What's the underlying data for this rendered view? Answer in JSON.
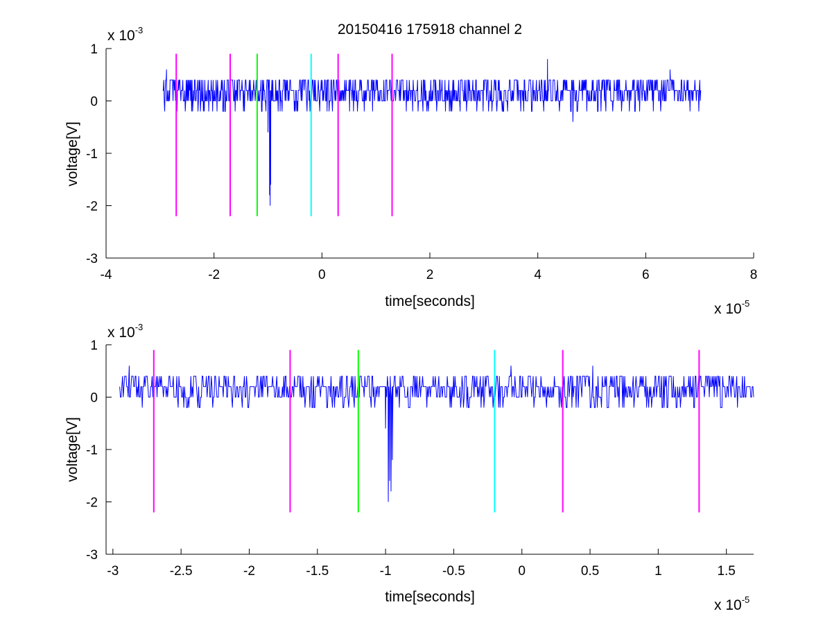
{
  "chart_data": [
    {
      "type": "line",
      "title": "20150416 175918 channel 2",
      "xlabel": "time[seconds]",
      "ylabel": "voltage[V]",
      "x_scale_label": "x 10",
      "x_scale_exponent": "-5",
      "y_scale_label": "x 10",
      "y_scale_exponent": "-3",
      "xlim": [
        -4,
        8
      ],
      "ylim": [
        -3,
        1
      ],
      "x_ticks": [
        -4,
        -2,
        0,
        2,
        4,
        6,
        8
      ],
      "x_tick_labels": [
        "-4",
        "-2",
        "0",
        "2",
        "4",
        "6",
        "8"
      ],
      "y_ticks": [
        -3,
        -2,
        -1,
        0,
        1
      ],
      "y_tick_labels": [
        "-3",
        "-2",
        "-1",
        "0",
        "1"
      ],
      "grid": false,
      "series": [
        {
          "color": "#0000ff",
          "x_range": [
            -2.95,
            7.02
          ],
          "baseline": 0.05,
          "noise_levels": [
            -0.2,
            0,
            0.2,
            0.4
          ],
          "events": [
            {
              "x": -2.88,
              "y": 0.6
            },
            {
              "x": -2.7,
              "y": -0.2
            },
            {
              "x": -1.0,
              "y": -0.6
            },
            {
              "x": -0.97,
              "y": -1.8
            },
            {
              "x": -0.96,
              "y": -2.0
            },
            {
              "x": -0.95,
              "y": -1.6
            },
            {
              "x": 4.18,
              "y": 0.8
            },
            {
              "x": 4.65,
              "y": -0.4
            },
            {
              "x": 6.45,
              "y": 0.6
            }
          ]
        }
      ],
      "markers": [
        {
          "x": -2.7,
          "color": "#ff00ff",
          "y_range": [
            -2.2,
            0.9
          ]
        },
        {
          "x": -1.7,
          "color": "#ff00ff",
          "y_range": [
            -2.2,
            0.9
          ]
        },
        {
          "x": -1.2,
          "color": "#00ff00",
          "y_range": [
            -2.2,
            0.9
          ]
        },
        {
          "x": -0.2,
          "color": "#00ffff",
          "y_range": [
            -2.2,
            0.9
          ]
        },
        {
          "x": 0.3,
          "color": "#ff00ff",
          "y_range": [
            -2.2,
            0.9
          ]
        },
        {
          "x": 1.3,
          "color": "#ff00ff",
          "y_range": [
            -2.2,
            0.9
          ]
        }
      ]
    },
    {
      "type": "line",
      "title": "",
      "xlabel": "time[seconds]",
      "ylabel": "voltage[V]",
      "x_scale_label": "x 10",
      "x_scale_exponent": "-5",
      "y_scale_label": "x 10",
      "y_scale_exponent": "-3",
      "xlim": [
        -3.05,
        1.7
      ],
      "ylim": [
        -3,
        1
      ],
      "x_ticks": [
        -3,
        -2.5,
        -2,
        -1.5,
        -1,
        -0.5,
        0,
        0.5,
        1,
        1.5
      ],
      "x_tick_labels": [
        "-3",
        "-2.5",
        "-2",
        "-1.5",
        "-1",
        "-0.5",
        "0",
        "0.5",
        "1",
        "1.5"
      ],
      "y_ticks": [
        -3,
        -2,
        -1,
        0,
        1
      ],
      "y_tick_labels": [
        "-3",
        "-2",
        "-1",
        "0",
        "1"
      ],
      "grid": false,
      "series": [
        {
          "color": "#0000ff",
          "x_range": [
            -2.95,
            1.7
          ],
          "baseline": 0.05,
          "noise_levels": [
            -0.2,
            0,
            0.2,
            0.4
          ],
          "events": [
            {
              "x": -2.88,
              "y": 0.6
            },
            {
              "x": -2.7,
              "y": -0.2
            },
            {
              "x": -1.0,
              "y": -0.6
            },
            {
              "x": -0.98,
              "y": -2.0
            },
            {
              "x": -0.97,
              "y": -1.6
            },
            {
              "x": -0.96,
              "y": -1.8
            },
            {
              "x": -0.95,
              "y": -1.2
            },
            {
              "x": -0.08,
              "y": 0.6
            },
            {
              "x": 0.52,
              "y": 0.6
            }
          ]
        }
      ],
      "markers": [
        {
          "x": -2.7,
          "color": "#ff00ff",
          "y_range": [
            -2.2,
            0.9
          ]
        },
        {
          "x": -1.7,
          "color": "#ff00ff",
          "y_range": [
            -2.2,
            0.9
          ]
        },
        {
          "x": -1.2,
          "color": "#00ff00",
          "y_range": [
            -2.2,
            0.9
          ]
        },
        {
          "x": -0.2,
          "color": "#00ffff",
          "y_range": [
            -2.2,
            0.9
          ]
        },
        {
          "x": 0.3,
          "color": "#ff00ff",
          "y_range": [
            -2.2,
            0.9
          ]
        },
        {
          "x": 1.3,
          "color": "#ff00ff",
          "y_range": [
            -2.2,
            0.9
          ]
        }
      ]
    }
  ]
}
